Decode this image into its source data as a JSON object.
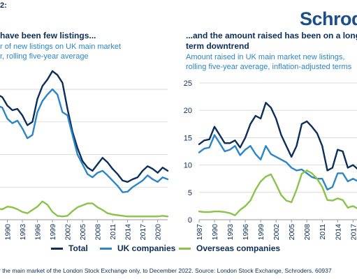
{
  "header": {
    "figure_label": "2:",
    "logo_text": "Schrod"
  },
  "colors": {
    "total": "#0b2e5a",
    "uk": "#2a86c8",
    "overseas": "#8bc34a",
    "grid": "#d3d3d3",
    "text": "#0b2e5a"
  },
  "legend": {
    "items": [
      {
        "label": "Total",
        "color": "#0b2e5a"
      },
      {
        "label": "UK companies",
        "color": "#2a86c8"
      },
      {
        "label": "Overseas companies",
        "color": "#8bc34a"
      }
    ]
  },
  "footnote": "r the main market of the London Stock Exchange only, to December 2022. Source: London Stock Exchange, Schroders. 60937",
  "chart_data": [
    {
      "type": "line",
      "title": "have been few listings...",
      "subtitle_lines": [
        "r of new listings on UK main market",
        "r, rolling five-year average"
      ],
      "x_tick_labels": [
        "1990",
        "1993",
        "1996",
        "1999",
        "2002",
        "2005",
        "2008",
        "2011",
        "2014",
        "2017",
        "2020"
      ],
      "x": [
        1987,
        1988,
        1989,
        1990,
        1991,
        1992,
        1993,
        1994,
        1995,
        1996,
        1997,
        1998,
        1999,
        2000,
        2001,
        2002,
        2003,
        2004,
        2005,
        2006,
        2007,
        2008,
        2009,
        2010,
        2011,
        2012,
        2013,
        2014,
        2015,
        2016,
        2017,
        2018,
        2019,
        2020,
        2021,
        2022
      ],
      "series": [
        {
          "name": "Total",
          "values": [
            198,
            192,
            188,
            175,
            168,
            170,
            160,
            145,
            150,
            185,
            205,
            215,
            228,
            222,
            210,
            170,
            135,
            110,
            90,
            80,
            75,
            85,
            95,
            88,
            78,
            70,
            60,
            58,
            62,
            65,
            75,
            82,
            78,
            72,
            80,
            75
          ]
        },
        {
          "name": "UK companies",
          "values": [
            180,
            175,
            172,
            155,
            148,
            152,
            140,
            125,
            130,
            165,
            182,
            192,
            200,
            192,
            165,
            160,
            130,
            100,
            85,
            70,
            65,
            72,
            75,
            68,
            60,
            52,
            42,
            43,
            50,
            55,
            60,
            68,
            62,
            58,
            65,
            62
          ]
        },
        {
          "name": "Overseas companies",
          "values": [
            18,
            17,
            16,
            20,
            19,
            16,
            12,
            10,
            15,
            20,
            28,
            23,
            12,
            6,
            5,
            6,
            13,
            19,
            22,
            25,
            25,
            19,
            15,
            10,
            8,
            7,
            6,
            5,
            5,
            5,
            5,
            5,
            5,
            5,
            6,
            5
          ]
        }
      ]
    },
    {
      "type": "line",
      "title_lines": [
        "...and the amount raised has been on a long",
        "term downtrend"
      ],
      "subtitle_lines": [
        "Amount raised in UK main market new listings,",
        "rolling five-year average, inflation-adjusted terms"
      ],
      "y_ticks": [
        0,
        5,
        10,
        15,
        20,
        25
      ],
      "ylim": [
        0,
        25
      ],
      "x_tick_labels": [
        "1987",
        "1990",
        "1993",
        "1996",
        "1999",
        "2002",
        "2005",
        "2008",
        "2011",
        "2014",
        "2017"
      ],
      "x": [
        1987,
        1988,
        1989,
        1990,
        1991,
        1992,
        1993,
        1994,
        1995,
        1996,
        1997,
        1998,
        1999,
        2000,
        2001,
        2002,
        2003,
        2004,
        2005,
        2006,
        2007,
        2008,
        2009,
        2010,
        2011,
        2012,
        2013,
        2014,
        2015,
        2016,
        2017,
        2018,
        2019
      ],
      "series": [
        {
          "name": "Total",
          "values": [
            13.8,
            14.5,
            14.7,
            17.0,
            15.5,
            14.0,
            14.0,
            14.5,
            13.2,
            15.0,
            17.5,
            19.0,
            18.5,
            21.4,
            20.5,
            18.5,
            15.5,
            13.5,
            11.5,
            13.5,
            17.5,
            18.0,
            17.0,
            15.8,
            13.5,
            9.0,
            9.5,
            12.8,
            12.5,
            9.5,
            10.0,
            9.2,
            10.5
          ]
        },
        {
          "name": "UK companies",
          "values": [
            12.3,
            13.0,
            13.2,
            15.5,
            14.0,
            12.5,
            12.8,
            13.5,
            11.8,
            12.8,
            13.5,
            12.0,
            11.0,
            13.5,
            12.0,
            11.5,
            11.0,
            10.5,
            9.5,
            9.0,
            9.2,
            8.5,
            7.8,
            7.5,
            7.5,
            5.5,
            6.0,
            8.5,
            8.5,
            7.0,
            7.5,
            7.0,
            7.8
          ]
        },
        {
          "name": "Overseas companies",
          "values": [
            1.5,
            1.4,
            1.4,
            1.5,
            1.5,
            1.4,
            1.2,
            0.8,
            1.8,
            2.5,
            3.5,
            5.5,
            7.0,
            7.9,
            8.3,
            6.5,
            4.5,
            3.5,
            3.2,
            5.5,
            8.4,
            9.0,
            8.5,
            7.5,
            6.0,
            3.6,
            3.5,
            3.9,
            3.6,
            2.2,
            2.5,
            2.0,
            2.2
          ]
        }
      ]
    }
  ]
}
